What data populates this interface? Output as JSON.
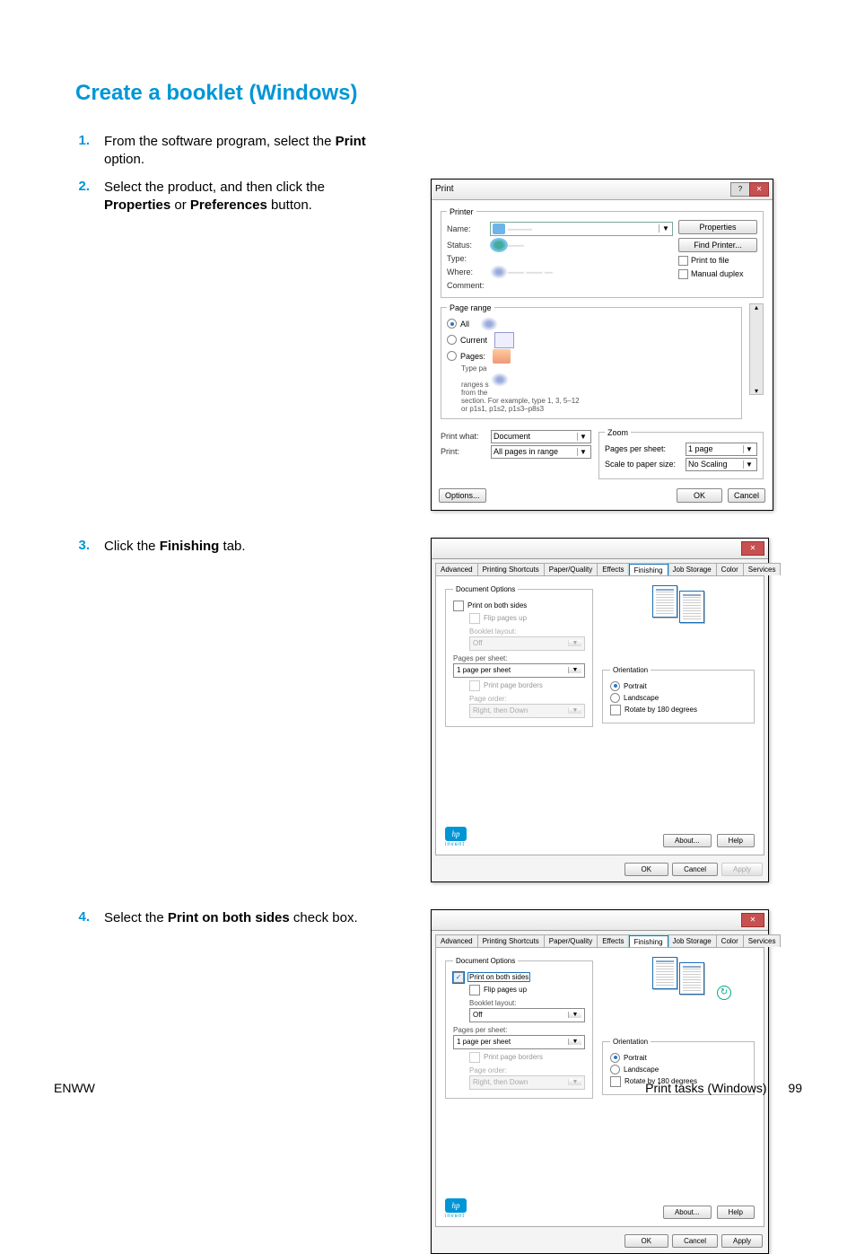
{
  "title": "Create a booklet (Windows)",
  "steps": [
    {
      "num": "1.",
      "pre": "From the software program, select the ",
      "bold": "Print",
      "post": " option."
    },
    {
      "num": "2.",
      "text_html": "Select the product, and then click the <b>Properties</b> or <b>Preferences</b> button."
    },
    {
      "num": "3.",
      "text_html": "Click the <b>Finishing</b> tab."
    },
    {
      "num": "4.",
      "text_html": "Select the <b>Print on both sides</b> check box."
    }
  ],
  "print_dialog": {
    "title": "Print",
    "printer_legend": "Printer",
    "name_label": "Name:",
    "status_label": "Status:",
    "type_label": "Type:",
    "where_label": "Where:",
    "comment_label": "Comment:",
    "properties_btn": "Properties",
    "find_printer_btn": "Find Printer...",
    "print_to_file": "Print to file",
    "manual_duplex": "Manual duplex",
    "page_range_legend": "Page range",
    "all": "All",
    "current": "Current",
    "pages": "Pages:",
    "range_hint1": "Type pa",
    "range_hint2": "ranges s",
    "range_hint3": "from the",
    "range_hint4": "section. For example, type 1, 3, 5–12",
    "range_hint5": "or p1s1, p1s2, p1s3–p8s3",
    "print_what_label": "Print what:",
    "print_what_value": "Document",
    "print_label": "Print:",
    "print_value": "All pages in range",
    "zoom_legend": "Zoom",
    "pps_label": "Pages per sheet:",
    "pps_value": "1 page",
    "scale_label": "Scale to paper size:",
    "scale_value": "No Scaling",
    "options_btn": "Options...",
    "ok_btn": "OK",
    "cancel_btn": "Cancel"
  },
  "prop_dialog": {
    "tabs": [
      "Advanced",
      "Printing Shortcuts",
      "Paper/Quality",
      "Effects",
      "Finishing",
      "Job Storage",
      "Color",
      "Services"
    ],
    "doc_options_legend": "Document Options",
    "print_both_sides": "Print on both sides",
    "flip_pages_up": "Flip pages up",
    "booklet_layout_label": "Booklet layout:",
    "booklet_layout_value": "Off",
    "pps_label": "Pages per sheet:",
    "pps_value": "1 page per sheet",
    "print_page_borders": "Print page borders",
    "page_order_label": "Page order:",
    "page_order_value": "Right, then Down",
    "orientation_legend": "Orientation",
    "portrait": "Portrait",
    "landscape": "Landscape",
    "rotate": "Rotate by 180 degrees",
    "hp_sub": "invent",
    "about_btn": "About...",
    "help_btn": "Help",
    "ok_btn": "OK",
    "cancel_btn": "Cancel",
    "apply_btn": "Apply"
  },
  "footer": {
    "left": "ENWW",
    "right": "Print tasks (Windows)",
    "pagenum": "99"
  },
  "colors": {
    "accent": "#0096d6"
  }
}
